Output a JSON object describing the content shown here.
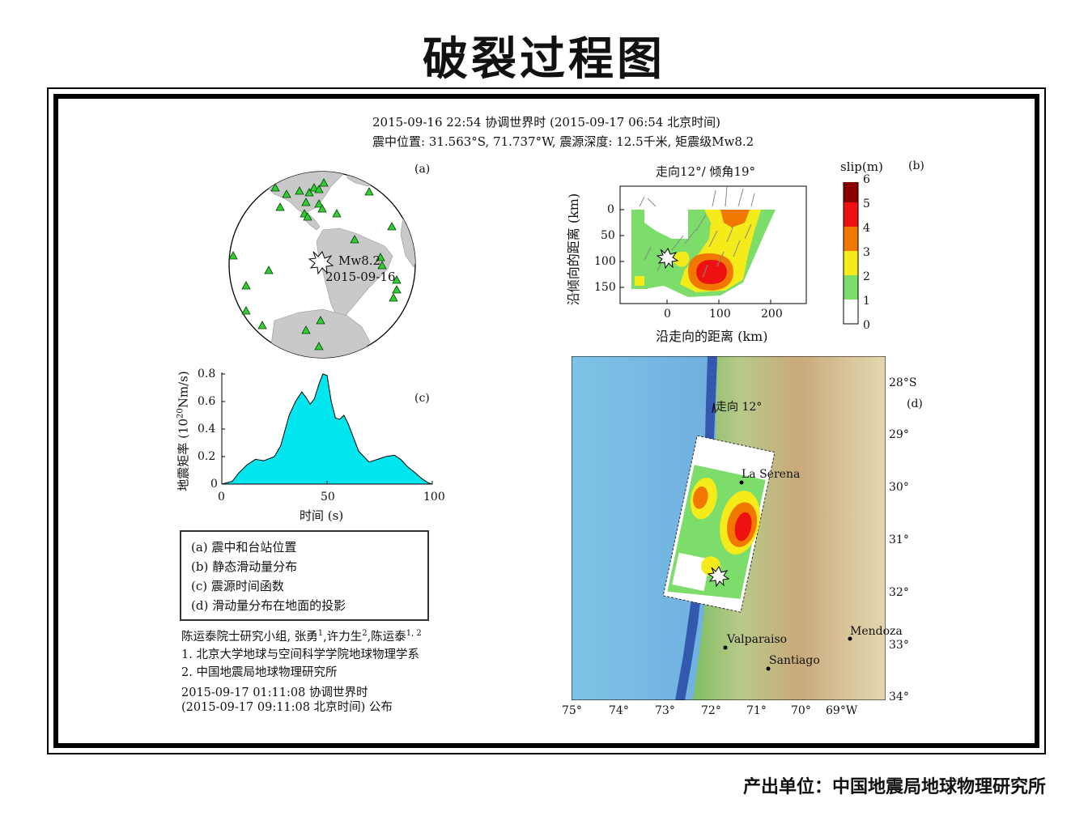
{
  "title": "破裂过程图",
  "header": {
    "line1": "2015-09-16 22:54 协调世界时 (2015-09-17 06:54 北京时间)",
    "line2": "震中位置: 31.563°S, 71.737°W, 震源深度: 12.5千米, 矩震级Mw8.2"
  },
  "panel_a": {
    "label": "(a)",
    "event_mag": "Mw8.2",
    "event_date": "2015-09-16"
  },
  "panel_b": {
    "label": "(b)",
    "title": "走向12°/ 倾角19°",
    "xlabel": "沿走向的距离 (km)",
    "ylabel": "沿倾向的距离 (km)",
    "x_ticks": [
      "0",
      "100",
      "200"
    ],
    "y_ticks": [
      "0",
      "50",
      "100",
      "150"
    ],
    "colorbar_title": "slip(m)",
    "colorbar_ticks": [
      "6",
      "5",
      "4",
      "3",
      "2",
      "1",
      "0"
    ],
    "colors": [
      "#8b0000",
      "#ee1111",
      "#f07800",
      "#f5ea1a",
      "#7ddd6a",
      "#ffffff"
    ]
  },
  "panel_c": {
    "label": "(c)",
    "ylabel_main": "地震矩率 (10",
    "ylabel_exp": "20",
    "ylabel_unit": "Nm/s)",
    "xlabel": "时间 (s)",
    "x_ticks": [
      "0",
      "50",
      "100"
    ],
    "y_ticks": [
      "0",
      "0.2",
      "0.4",
      "0.6",
      "0.8"
    ],
    "fill_color": "#00e5ee"
  },
  "chart_data": {
    "type": "area",
    "title": "",
    "xlabel": "时间 (s)",
    "ylabel": "地震矩率 (10^20 Nm/s)",
    "xlim": [
      0,
      100
    ],
    "ylim": [
      0,
      0.8
    ],
    "x": [
      0,
      5,
      8,
      12,
      16,
      20,
      25,
      28,
      32,
      35,
      38,
      40,
      42,
      44,
      46,
      48,
      50,
      52,
      54,
      56,
      58,
      60,
      62,
      65,
      70,
      74,
      78,
      82,
      85,
      88,
      92,
      95,
      98,
      100
    ],
    "y": [
      0,
      0.02,
      0.08,
      0.14,
      0.18,
      0.17,
      0.2,
      0.28,
      0.5,
      0.6,
      0.67,
      0.63,
      0.58,
      0.62,
      0.72,
      0.8,
      0.79,
      0.6,
      0.48,
      0.47,
      0.5,
      0.44,
      0.36,
      0.24,
      0.16,
      0.18,
      0.2,
      0.21,
      0.18,
      0.13,
      0.08,
      0.04,
      0.01,
      0
    ]
  },
  "panel_d": {
    "label": "(d)",
    "strike_label": "走向 12°",
    "lat_ticks": [
      "28°S",
      "29°",
      "30°",
      "31°",
      "32°",
      "33°",
      "34°"
    ],
    "lon_ticks": [
      "75°",
      "74°",
      "73°",
      "72°",
      "71°",
      "70°",
      "69°W"
    ],
    "cities": [
      "La Serena",
      "Valparaiso",
      "Santiago",
      "Mendoza"
    ]
  },
  "legend": {
    "items": [
      "(a) 震中和台站位置",
      "(b) 静态滑动量分布",
      "(c) 震源时间函数",
      "(d) 滑动量分布在地面的投影"
    ]
  },
  "credits": {
    "group": "陈运泰院士研究小组, 张勇",
    "sup1": "1",
    "name2": ",许力生",
    "sup2": "2",
    "name3": ",陈运泰",
    "sup3": "1, 2",
    "affil1": "1. 北京大学地球与空间科学学院地球物理学系",
    "affil2": "2. 中国地震局地球物理研究所",
    "time1": "2015-09-17 01:11:08 协调世界时",
    "time2": "(2015-09-17 09:11:08 北京时间) 公布"
  },
  "producer": "产出单位：中国地震局地球物理研究所"
}
